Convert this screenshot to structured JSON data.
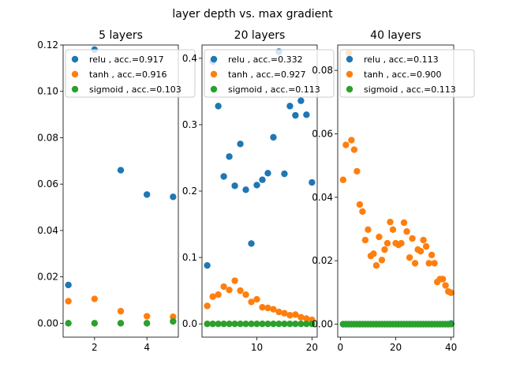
{
  "figure": {
    "suptitle": "layer depth vs. max gradient"
  },
  "colors": {
    "relu": "#1f77b4",
    "tanh": "#ff7f0e",
    "sigmoid": "#2ca02c"
  },
  "chart_data": [
    {
      "type": "scatter",
      "title": "5 layers",
      "xlim": [
        0.8,
        5.2
      ],
      "ylim": [
        -0.006,
        0.12
      ],
      "xticks": [
        2,
        4
      ],
      "yticks": [
        0.0,
        0.02,
        0.04,
        0.06,
        0.08,
        0.1,
        0.12
      ],
      "ytick_labels": [
        "0.00",
        "0.02",
        "0.04",
        "0.06",
        "0.08",
        "0.10",
        "0.12"
      ],
      "legend": [
        "relu , acc.=0.917",
        "tanh , acc.=0.916",
        "sigmoid , acc.=0.103"
      ],
      "series": [
        {
          "name": "relu",
          "x": [
            1,
            2,
            3,
            4,
            5
          ],
          "y": [
            0.0165,
            0.118,
            0.066,
            0.0555,
            0.0545
          ]
        },
        {
          "name": "tanh",
          "x": [
            1,
            2,
            3,
            4,
            5
          ],
          "y": [
            0.0095,
            0.0105,
            0.0052,
            0.003,
            0.0028
          ]
        },
        {
          "name": "sigmoid",
          "x": [
            1,
            2,
            3,
            4,
            5
          ],
          "y": [
            0.0,
            0.0,
            0.0,
            0.0,
            0.0008
          ]
        }
      ]
    },
    {
      "type": "scatter",
      "title": "20 layers",
      "xlim": [
        0.05,
        20.95
      ],
      "ylim": [
        -0.02,
        0.42
      ],
      "xticks": [
        10,
        20
      ],
      "yticks": [
        0.0,
        0.1,
        0.2,
        0.3,
        0.4
      ],
      "ytick_labels": [
        "0.0",
        "0.1",
        "0.2",
        "0.3",
        "0.4"
      ],
      "legend": [
        "relu , acc.=0.332",
        "tanh , acc.=0.927",
        "sigmoid , acc.=0.113"
      ],
      "series": [
        {
          "name": "relu",
          "x": [
            1,
            2,
            3,
            4,
            5,
            6,
            7,
            8,
            9,
            10,
            11,
            12,
            13,
            14,
            15,
            16,
            17,
            18,
            19,
            20
          ],
          "y": [
            0.088,
            0.395,
            0.328,
            0.222,
            0.252,
            0.208,
            0.271,
            0.202,
            0.121,
            0.209,
            0.217,
            0.227,
            0.281,
            0.41,
            0.226,
            0.328,
            0.314,
            0.336,
            0.315,
            0.213
          ]
        },
        {
          "name": "tanh",
          "x": [
            1,
            2,
            3,
            4,
            5,
            6,
            7,
            8,
            9,
            10,
            11,
            12,
            13,
            14,
            15,
            16,
            17,
            18,
            19,
            20
          ],
          "y": [
            0.027,
            0.041,
            0.044,
            0.056,
            0.051,
            0.065,
            0.05,
            0.044,
            0.033,
            0.037,
            0.025,
            0.024,
            0.022,
            0.018,
            0.016,
            0.013,
            0.014,
            0.01,
            0.008,
            0.006
          ]
        },
        {
          "name": "sigmoid",
          "x": [
            1,
            2,
            3,
            4,
            5,
            6,
            7,
            8,
            9,
            10,
            11,
            12,
            13,
            14,
            15,
            16,
            17,
            18,
            19,
            20
          ],
          "y": [
            0,
            0,
            0,
            0,
            0,
            0,
            0,
            0,
            0,
            0,
            0,
            0,
            0,
            0,
            0,
            0,
            0,
            0,
            0,
            0
          ]
        }
      ]
    },
    {
      "type": "scatter",
      "title": "40 layers",
      "xlim": [
        -0.95,
        40.95
      ],
      "ylim": [
        -0.0041,
        0.088
      ],
      "xticks": [
        0,
        20,
        40
      ],
      "yticks": [
        0.0,
        0.02,
        0.04,
        0.06,
        0.08
      ],
      "ytick_labels": [
        "0.00",
        "0.02",
        "0.04",
        "0.06",
        "0.08"
      ],
      "legend": [
        "relu , acc.=0.113",
        "tanh , acc.=0.900",
        "sigmoid , acc.=0.113"
      ],
      "series": [
        {
          "name": "relu",
          "x": [
            1,
            2,
            3,
            4,
            5,
            6,
            7,
            8,
            9,
            10,
            11,
            12,
            13,
            14,
            15,
            16,
            17,
            18,
            19,
            20,
            21,
            22,
            23,
            24,
            25,
            26,
            27,
            28,
            29,
            30,
            31,
            32,
            33,
            34,
            35,
            36,
            37,
            38,
            39,
            40
          ],
          "y": [
            0,
            0,
            0,
            0,
            0,
            0,
            0,
            0,
            0,
            0,
            0,
            0,
            0,
            0,
            0,
            0,
            0,
            0,
            0,
            0,
            0,
            0,
            0,
            0,
            0,
            0,
            0,
            0,
            0,
            0,
            0,
            0,
            0,
            0,
            0,
            0,
            0,
            0,
            0,
            0.0002
          ]
        },
        {
          "name": "tanh",
          "x": [
            1,
            2,
            3,
            4,
            5,
            6,
            7,
            8,
            9,
            10,
            11,
            12,
            13,
            14,
            15,
            16,
            17,
            18,
            19,
            20,
            21,
            22,
            23,
            24,
            25,
            26,
            27,
            28,
            29,
            30,
            31,
            32,
            33,
            34,
            35,
            36,
            37,
            38,
            39,
            40
          ],
          "y": [
            0.0455,
            0.0565,
            0.0855,
            0.058,
            0.055,
            0.0482,
            0.0377,
            0.0355,
            0.0265,
            0.0298,
            0.0215,
            0.0222,
            0.0185,
            0.0275,
            0.0202,
            0.0235,
            0.0255,
            0.0322,
            0.0298,
            0.0255,
            0.025,
            0.0255,
            0.032,
            0.0292,
            0.021,
            0.027,
            0.0192,
            0.0235,
            0.023,
            0.0265,
            0.0245,
            0.0192,
            0.0218,
            0.0192,
            0.0133,
            0.0142,
            0.0142,
            0.0122,
            0.0103,
            0.0099
          ]
        },
        {
          "name": "sigmoid",
          "x": [
            1,
            2,
            3,
            4,
            5,
            6,
            7,
            8,
            9,
            10,
            11,
            12,
            13,
            14,
            15,
            16,
            17,
            18,
            19,
            20,
            21,
            22,
            23,
            24,
            25,
            26,
            27,
            28,
            29,
            30,
            31,
            32,
            33,
            34,
            35,
            36,
            37,
            38,
            39,
            40
          ],
          "y": [
            0,
            0,
            0,
            0,
            0,
            0,
            0,
            0,
            0,
            0,
            0,
            0,
            0,
            0,
            0,
            0,
            0,
            0,
            0,
            0,
            0,
            0,
            0,
            0,
            0,
            0,
            0,
            0,
            0,
            0,
            0,
            0,
            0,
            0,
            0,
            0,
            0,
            0,
            0,
            0
          ]
        }
      ]
    }
  ]
}
